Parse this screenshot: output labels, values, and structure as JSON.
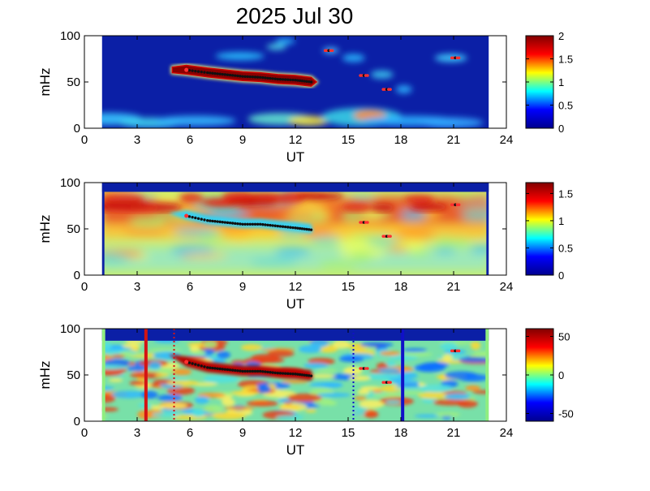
{
  "title": "2025 Jul 30",
  "colors": {
    "cmap": [
      "#00008f",
      "#0000ff",
      "#00ffff",
      "#ffff00",
      "#ff0000",
      "#800000"
    ],
    "dots": "#111111",
    "red_marker": "#ff3030",
    "bar_red": "#d41414",
    "bar_blue": "#1010c8",
    "edge_green": "#90ee80"
  },
  "chart_data": [
    {
      "type": "heatmap",
      "xlabel": "UT",
      "ylabel": "mHz",
      "xlim": [
        0,
        24
      ],
      "ylim": [
        0,
        100
      ],
      "xticks": [
        0,
        3,
        6,
        9,
        12,
        15,
        18,
        21,
        24
      ],
      "yticks": [
        0,
        50,
        100
      ],
      "data_range": [
        1,
        23
      ],
      "colorbar": {
        "ticks": [
          0,
          0.5,
          1,
          1.5,
          2
        ],
        "ticklabels": [
          "0",
          "0.5",
          "1",
          "1.5",
          "2"
        ],
        "lim": [
          0,
          2
        ]
      },
      "trace": [
        [
          5.8,
          63
        ],
        [
          7,
          60
        ],
        [
          8,
          58
        ],
        [
          9,
          56
        ],
        [
          10,
          55
        ],
        [
          11,
          53
        ],
        [
          12,
          52
        ],
        [
          12.9,
          50
        ]
      ],
      "markers": [
        [
          13.9,
          84
        ],
        [
          15.9,
          57
        ],
        [
          17.2,
          42
        ],
        [
          21.1,
          76
        ]
      ]
    },
    {
      "type": "heatmap",
      "xlabel": "UT",
      "ylabel": "mHz",
      "xlim": [
        0,
        24
      ],
      "ylim": [
        0,
        100
      ],
      "xticks": [
        0,
        3,
        6,
        9,
        12,
        15,
        18,
        21,
        24
      ],
      "yticks": [
        0,
        50,
        100
      ],
      "data_range": [
        1,
        23
      ],
      "colorbar": {
        "ticks": [
          0,
          0.5,
          1,
          1.5
        ],
        "ticklabels": [
          "0",
          "0.5",
          "1",
          "1.5"
        ],
        "lim": [
          0,
          1.7
        ]
      },
      "trace": [
        [
          5.8,
          64
        ],
        [
          7,
          59
        ],
        [
          8,
          57
        ],
        [
          9,
          55
        ],
        [
          10,
          55
        ],
        [
          11,
          53
        ],
        [
          12,
          51
        ],
        [
          12.9,
          49
        ]
      ],
      "markers": [
        [
          15.9,
          57
        ],
        [
          17.2,
          42
        ],
        [
          21.1,
          76
        ]
      ]
    },
    {
      "type": "heatmap",
      "xlabel": "UT",
      "ylabel": "mHz",
      "xlim": [
        0,
        24
      ],
      "ylim": [
        0,
        100
      ],
      "xticks": [
        0,
        3,
        6,
        9,
        12,
        15,
        18,
        21,
        24
      ],
      "yticks": [
        0,
        50,
        100
      ],
      "data_range": [
        1,
        23
      ],
      "colorbar": {
        "ticks": [
          -50,
          0,
          50
        ],
        "ticklabels": [
          "-50",
          "0",
          "50"
        ],
        "lim": [
          -60,
          60
        ]
      },
      "trace": [
        [
          5.8,
          64
        ],
        [
          7,
          58
        ],
        [
          8,
          56
        ],
        [
          9,
          54
        ],
        [
          10,
          54
        ],
        [
          11,
          52
        ],
        [
          12,
          51
        ],
        [
          12.9,
          49
        ]
      ],
      "markers": [
        [
          15.9,
          57
        ],
        [
          17.2,
          42
        ],
        [
          21.1,
          76
        ]
      ],
      "vlines": [
        {
          "x": 3.5,
          "style": "solid",
          "color": "red"
        },
        {
          "x": 5.1,
          "style": "dotted",
          "color": "red"
        },
        {
          "x": 15.3,
          "style": "dotted",
          "color": "blue"
        },
        {
          "x": 18.1,
          "style": "solid",
          "color": "blue"
        }
      ]
    }
  ]
}
